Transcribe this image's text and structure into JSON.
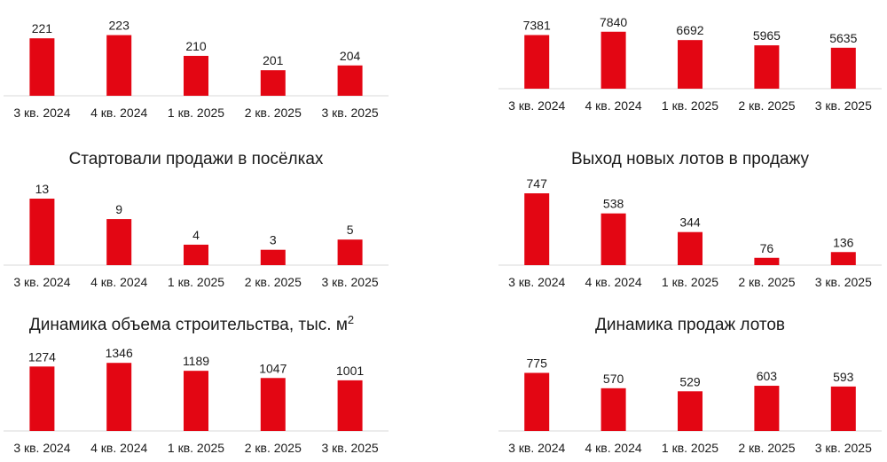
{
  "colors": {
    "bar": "#e30613"
  },
  "charts": [
    {
      "type": "bar",
      "title": "",
      "title_sup": "",
      "categories": [
        "3 кв. 2024",
        "4 кв. 2024",
        "1 кв. 2025",
        "2 кв. 2025",
        "3 кв. 2025"
      ],
      "values": [
        221,
        223,
        210,
        201,
        204
      ],
      "ylim": [
        185,
        225
      ]
    },
    {
      "type": "bar",
      "title": "",
      "title_sup": "",
      "categories": [
        "3 кв. 2024",
        "4 кв. 2024",
        "1 кв. 2025",
        "2 кв. 2025",
        "3 кв. 2025"
      ],
      "values": [
        7381,
        7840,
        6692,
        5965,
        5635
      ],
      "ylim": [
        0,
        8300
      ]
    },
    {
      "type": "bar",
      "title": "Стартовали продажи в посёлках",
      "title_sup": "",
      "categories": [
        "3 кв. 2024",
        "4 кв. 2024",
        "1 кв. 2025",
        "2 кв. 2025",
        "3 кв. 2025"
      ],
      "values": [
        13,
        9,
        4,
        3,
        5
      ],
      "ylim": [
        0,
        13
      ]
    },
    {
      "type": "bar",
      "title": "Выход новых лотов в продажу",
      "title_sup": "",
      "categories": [
        "3 кв. 2024",
        "4 кв. 2024",
        "1 кв. 2025",
        "2 кв. 2025",
        "3 кв. 2025"
      ],
      "values": [
        747,
        538,
        344,
        76,
        136
      ],
      "ylim": [
        0,
        747
      ]
    },
    {
      "type": "bar",
      "title": "Динамика объема строительства, тыс. м",
      "title_sup": "2",
      "categories": [
        "3 кв. 2024",
        "4 кв. 2024",
        "1 кв. 2025",
        "2 кв. 2025",
        "3 кв. 2025"
      ],
      "values": [
        1274,
        1346,
        1189,
        1047,
        1001
      ],
      "ylim": [
        0,
        1420
      ]
    },
    {
      "type": "bar",
      "title": "Динамика продаж лотов",
      "title_sup": "",
      "categories": [
        "3 кв. 2024",
        "4 кв. 2024",
        "1 кв. 2025",
        "2 кв. 2025",
        "3 кв. 2025"
      ],
      "values": [
        775,
        570,
        529,
        603,
        593
      ],
      "ylim": [
        0,
        840
      ]
    }
  ]
}
